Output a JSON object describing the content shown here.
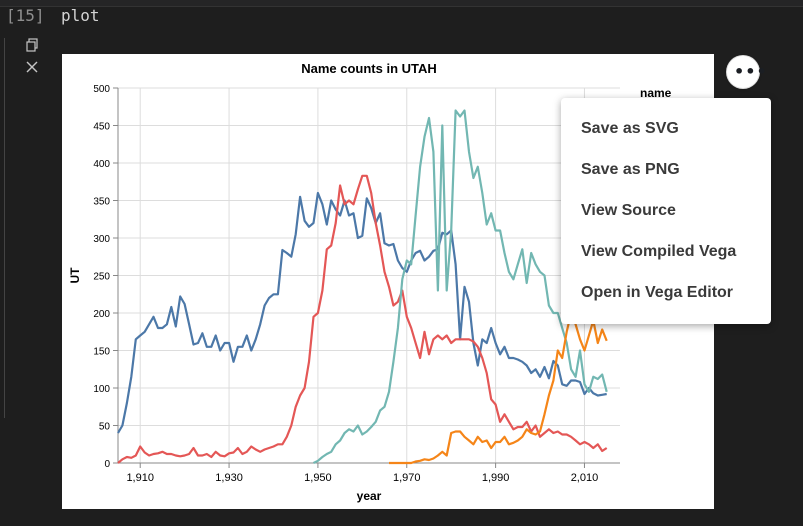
{
  "cell": {
    "execution_count": "[15]",
    "code": "plot"
  },
  "toolbar": {
    "copy_icon": "copy-icon",
    "clear_icon": "close-icon"
  },
  "actions": {
    "button_icon": "ellipsis-icon",
    "button_label": "•••",
    "menu": [
      "Save as SVG",
      "Save as PNG",
      "View Source",
      "View Compiled Vega",
      "Open in Vega Editor"
    ]
  },
  "chart_data": {
    "type": "line",
    "title": "Name counts in UTAH",
    "xlabel": "year",
    "ylabel": "UT",
    "legend_title": "name",
    "xlim": [
      1905,
      2018
    ],
    "ylim": [
      0,
      500
    ],
    "xticks": [
      1910,
      1930,
      1950,
      1970,
      1990,
      2010
    ],
    "xtick_labels": [
      "1,910",
      "1,930",
      "1,950",
      "1,970",
      "1,990",
      "2,010"
    ],
    "yticks": [
      0,
      50,
      100,
      150,
      200,
      250,
      300,
      350,
      400,
      450,
      500
    ],
    "grid": true,
    "series": [
      {
        "color": "#4c78a8",
        "x": [
          1905,
          1906,
          1907,
          1908,
          1909,
          1910,
          1911,
          1912,
          1913,
          1914,
          1915,
          1916,
          1917,
          1918,
          1919,
          1920,
          1921,
          1922,
          1923,
          1924,
          1925,
          1926,
          1927,
          1928,
          1929,
          1930,
          1931,
          1932,
          1933,
          1934,
          1935,
          1936,
          1937,
          1938,
          1939,
          1940,
          1941,
          1942,
          1943,
          1944,
          1945,
          1946,
          1947,
          1948,
          1949,
          1950,
          1951,
          1952,
          1953,
          1954,
          1955,
          1956,
          1957,
          1958,
          1959,
          1960,
          1961,
          1962,
          1963,
          1964,
          1965,
          1966,
          1967,
          1968,
          1969,
          1970,
          1971,
          1972,
          1973,
          1974,
          1975,
          1976,
          1977,
          1978,
          1979,
          1980,
          1981,
          1982,
          1983,
          1984,
          1985,
          1986,
          1987,
          1988,
          1989,
          1990,
          1991,
          1992,
          1993,
          1994,
          1995,
          1996,
          1997,
          1998,
          1999,
          2000,
          2001,
          2002,
          2003,
          2004,
          2005,
          2006,
          2007,
          2008,
          2009,
          2010,
          2011,
          2012,
          2013,
          2014,
          2015
        ],
        "y": [
          40,
          50,
          80,
          115,
          165,
          170,
          175,
          185,
          195,
          180,
          180,
          185,
          208,
          182,
          222,
          212,
          185,
          158,
          160,
          173,
          155,
          155,
          170,
          150,
          160,
          160,
          135,
          155,
          155,
          170,
          150,
          165,
          185,
          210,
          220,
          225,
          225,
          284,
          280,
          275,
          305,
          355,
          323,
          315,
          320,
          360,
          345,
          318,
          350,
          338,
          330,
          350,
          330,
          333,
          300,
          303,
          353,
          340,
          320,
          333,
          293,
          290,
          292,
          270,
          260,
          255,
          270,
          280,
          283,
          270,
          275,
          283,
          285,
          307,
          305,
          310,
          265,
          165,
          235,
          215,
          160,
          130,
          165,
          160,
          180,
          160,
          145,
          155,
          140,
          140,
          138,
          135,
          130,
          120,
          125,
          115,
          128,
          113,
          136,
          130,
          105,
          103,
          110,
          110,
          108,
          92,
          100,
          93,
          90,
          91,
          92
        ]
      },
      {
        "color": "#e45756",
        "x": [
          1905,
          1906,
          1907,
          1908,
          1909,
          1910,
          1911,
          1912,
          1913,
          1914,
          1915,
          1916,
          1917,
          1918,
          1919,
          1920,
          1921,
          1922,
          1923,
          1924,
          1925,
          1926,
          1927,
          1928,
          1929,
          1930,
          1931,
          1932,
          1933,
          1934,
          1935,
          1936,
          1937,
          1938,
          1939,
          1940,
          1941,
          1942,
          1943,
          1944,
          1945,
          1946,
          1947,
          1948,
          1949,
          1950,
          1951,
          1952,
          1953,
          1954,
          1955,
          1956,
          1957,
          1958,
          1959,
          1960,
          1961,
          1962,
          1963,
          1964,
          1965,
          1966,
          1967,
          1968,
          1969,
          1970,
          1971,
          1972,
          1973,
          1974,
          1975,
          1976,
          1977,
          1978,
          1979,
          1980,
          1981,
          1982,
          1983,
          1984,
          1985,
          1986,
          1987,
          1988,
          1989,
          1990,
          1991,
          1992,
          1993,
          1994,
          1995,
          1996,
          1997,
          1998,
          1999,
          2000,
          2001,
          2002,
          2003,
          2004,
          2005,
          2006,
          2007,
          2008,
          2009,
          2010,
          2011,
          2012,
          2013,
          2014,
          2015
        ],
        "y": [
          0,
          5,
          8,
          7,
          10,
          22,
          14,
          10,
          12,
          13,
          15,
          12,
          12,
          10,
          9,
          10,
          12,
          20,
          10,
          10,
          12,
          8,
          15,
          10,
          9,
          13,
          14,
          20,
          12,
          15,
          22,
          18,
          15,
          18,
          20,
          22,
          25,
          25,
          35,
          50,
          75,
          90,
          100,
          135,
          195,
          200,
          230,
          285,
          290,
          320,
          370,
          345,
          350,
          345,
          365,
          383,
          383,
          360,
          320,
          290,
          255,
          235,
          210,
          215,
          230,
          195,
          180,
          160,
          140,
          175,
          145,
          165,
          170,
          165,
          170,
          160,
          165,
          165,
          165,
          165,
          162,
          155,
          140,
          120,
          85,
          78,
          55,
          65,
          55,
          45,
          48,
          48,
          55,
          42,
          50,
          35,
          40,
          45,
          40,
          42,
          38,
          38,
          35,
          30,
          25,
          28,
          25,
          20,
          25,
          16,
          20
        ]
      },
      {
        "color": "#72b7b2",
        "x": [
          1949,
          1950,
          1951,
          1952,
          1953,
          1954,
          1955,
          1956,
          1957,
          1958,
          1959,
          1960,
          1961,
          1962,
          1963,
          1964,
          1965,
          1966,
          1967,
          1968,
          1969,
          1970,
          1971,
          1972,
          1973,
          1974,
          1975,
          1976,
          1977,
          1978,
          1979,
          1980,
          1981,
          1982,
          1983,
          1984,
          1985,
          1986,
          1987,
          1988,
          1989,
          1990,
          1991,
          1992,
          1993,
          1994,
          1995,
          1996,
          1997,
          1998,
          1999,
          2000,
          2001,
          2002,
          2003,
          2004,
          2005,
          2006,
          2007,
          2008,
          2009,
          2010,
          2011,
          2012,
          2013,
          2014,
          2015
        ],
        "y": [
          0,
          3,
          8,
          12,
          15,
          25,
          30,
          40,
          45,
          42,
          50,
          38,
          42,
          48,
          55,
          70,
          75,
          95,
          135,
          180,
          245,
          270,
          265,
          330,
          395,
          435,
          460,
          415,
          230,
          450,
          230,
          310,
          470,
          462,
          470,
          415,
          380,
          395,
          360,
          318,
          333,
          310,
          310,
          280,
          255,
          245,
          265,
          285,
          240,
          280,
          265,
          255,
          250,
          210,
          200,
          200,
          180,
          160,
          125,
          115,
          150,
          105,
          95,
          115,
          112,
          118,
          95
        ]
      },
      {
        "color": "#f58518",
        "x": [
          1966,
          1967,
          1968,
          1969,
          1970,
          1971,
          1972,
          1973,
          1974,
          1975,
          1976,
          1977,
          1978,
          1979,
          1980,
          1981,
          1982,
          1983,
          1984,
          1985,
          1986,
          1987,
          1988,
          1989,
          1990,
          1991,
          1992,
          1993,
          1994,
          1995,
          1996,
          1997,
          1998,
          1999,
          2000,
          2001,
          2002,
          2003,
          2004,
          2005,
          2006,
          2007,
          2008,
          2009,
          2010,
          2011,
          2012,
          2013,
          2014,
          2015
        ],
        "y": [
          0,
          0,
          0,
          0,
          0,
          0,
          2,
          3,
          5,
          4,
          6,
          10,
          15,
          10,
          40,
          42,
          42,
          35,
          30,
          25,
          35,
          28,
          30,
          20,
          28,
          28,
          35,
          25,
          27,
          30,
          35,
          45,
          40,
          38,
          42,
          65,
          90,
          110,
          150,
          140,
          175,
          200,
          185,
          165,
          150,
          170,
          190,
          160,
          178,
          163
        ]
      }
    ]
  }
}
